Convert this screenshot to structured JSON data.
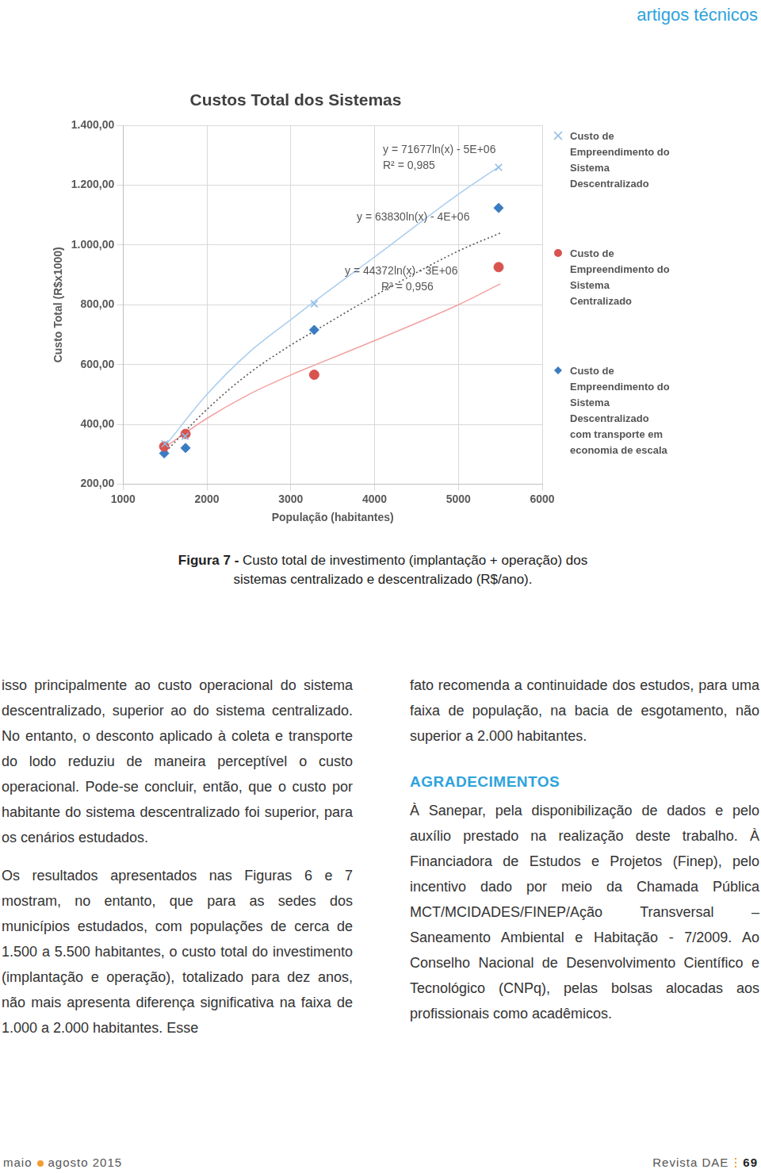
{
  "header": {
    "section": "artigos técnicos"
  },
  "chart_data": {
    "type": "scatter",
    "title": "Custos Total dos Sistemas",
    "x_label": "População (habitantes)",
    "y_label": "Custo Total (R$x1000)",
    "xlim": [
      1000,
      6000
    ],
    "xticks": [
      1000,
      2000,
      3000,
      4000,
      5000,
      6000
    ],
    "ylim": [
      200,
      1400
    ],
    "yticks": [
      {
        "value": 200,
        "label": "200,00"
      },
      {
        "value": 400,
        "label": "400,00"
      },
      {
        "value": 600,
        "label": "600,00"
      },
      {
        "value": 800,
        "label": "800,00"
      },
      {
        "value": 1000,
        "label": "1.000,00"
      },
      {
        "value": 1200,
        "label": "1.200,00"
      },
      {
        "value": 1400,
        "label": "1.400,00"
      }
    ],
    "grid": true,
    "legend": "right",
    "series": [
      {
        "name": "Custo de Empreendimento do Sistema Descentralizado",
        "color": "#8fbbe6",
        "marker": "x",
        "x": [
          1500,
          1740,
          3280,
          5480
        ],
        "values": [
          335,
          360,
          803,
          1260
        ]
      },
      {
        "name": "Custo de Empreendimento do Sistema Centralizado",
        "color": "#d9534f",
        "marker": "circle",
        "x": [
          1490,
          1745,
          3280,
          5480
        ],
        "values": [
          326,
          368,
          566,
          926
        ]
      },
      {
        "name": "Custo de Empreendimento do Sistema Descentralizado com transporte em economia de escala",
        "color": "#3a7cc2",
        "marker": "diamond",
        "x": [
          1490,
          1745,
          3280,
          5480
        ],
        "values": [
          303,
          321,
          716,
          1124
        ]
      },
      {
        "type": "line",
        "color": "#a9cdee",
        "line_style": "solid",
        "x": [
          1480,
          2000,
          2500,
          3000,
          3300,
          4000,
          5000,
          5500
        ],
        "values": [
          320,
          500,
          640,
          750,
          815,
          960,
          1170,
          1265
        ],
        "equation": "y = 71677ln(x) - 5E+06",
        "r2": "R² = 0,985"
      },
      {
        "type": "line",
        "color": "#555555",
        "line_style": "dotted",
        "x": [
          1480,
          2000,
          2500,
          3000,
          3300,
          4000,
          5000,
          5500
        ],
        "values": [
          300,
          450,
          570,
          665,
          715,
          830,
          980,
          1040
        ],
        "equation": "y = 63830ln(x) - 4E+06"
      },
      {
        "type": "line",
        "color": "#f2a2a0",
        "line_style": "solid",
        "x": [
          1480,
          2000,
          2500,
          3000,
          3300,
          4000,
          5000,
          5500
        ],
        "values": [
          320,
          420,
          500,
          565,
          600,
          680,
          800,
          870
        ],
        "equation": "y = 44372ln(x) - 3E+06",
        "r2": "R² = 0,956"
      }
    ]
  },
  "caption": {
    "label": "Figura 7 -",
    "text": "Custo total de investimento (implantação + operação) dos sistemas centralizado e descentralizado (R$/ano)."
  },
  "columns": [
    [
      {
        "text": "isso principalmente ao custo operacional do sistema descentralizado, superior ao do sistema centralizado. No entanto, o desconto aplicado à coleta e transporte do lodo reduziu de maneira perceptível o custo operacional. Pode-se concluir, então, que o custo por habitante do sistema descentralizado foi superior, para os cenários estudados."
      },
      {
        "text": "Os resultados apresentados nas Figuras 6 e 7 mostram, no entanto, que para as sedes dos municípios estudados, com populações de cerca de 1.500 a 5.500 habitantes, o custo total do investimento (implantação e operação), totalizado para dez anos, não mais apresenta diferença significativa na faixa de 1.000 a 2.000 habitantes. Esse"
      }
    ],
    [
      {
        "text": "fato recomenda a continuidade dos estudos, para uma faixa de população, na bacia de esgotamento, não superior a 2.000 habitantes."
      },
      {
        "heading": "AGRADECIMENTOS"
      },
      {
        "text": "À Sanepar, pela disponibilização de dados e pelo auxílio prestado na realização deste trabalho. À Financiadora de Estudos e Projetos (Finep), pelo incentivo dado por meio da Chamada Pública MCT/MCIDADES/FINEP/Ação Transversal – Saneamento Ambiental e Habitação - 7/2009. Ao Conselho Nacional de Desenvolvimento Científico e Tecnológico (CNPq), pelas bolsas alocadas aos profissionais como acadêmicos."
      }
    ]
  ],
  "footer": {
    "issue_start": "maio",
    "issue_end": "agosto 2015",
    "journal": "Revista DAE",
    "page": "69"
  }
}
